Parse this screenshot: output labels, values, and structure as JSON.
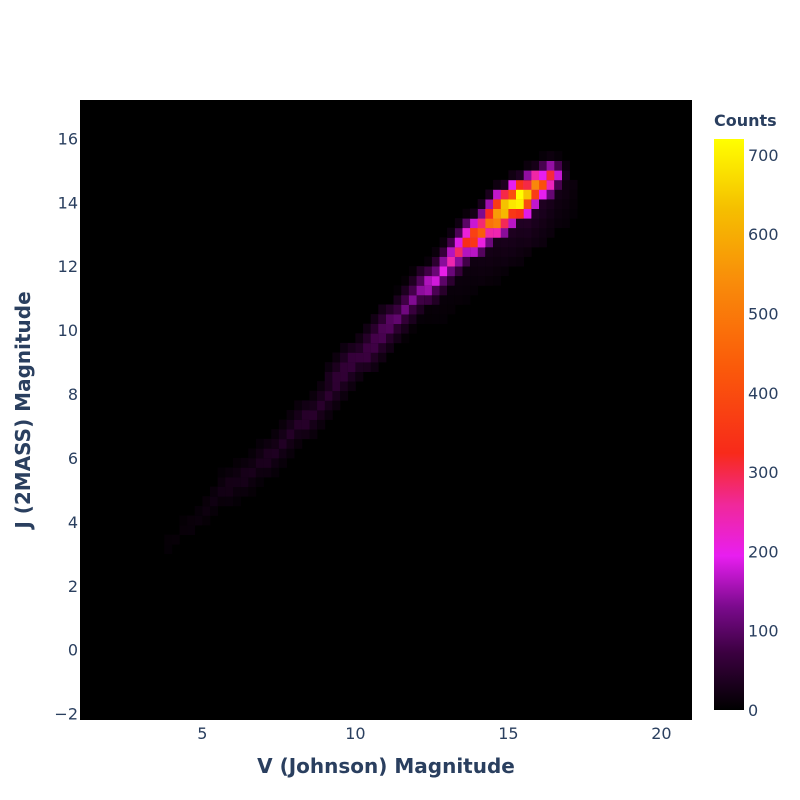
{
  "chart_data": {
    "type": "heatmap",
    "subtype": "2d-histogram",
    "xlabel": "V (Johnson) Magnitude",
    "ylabel": "J (2MASS) Magnitude",
    "xlim": [
      1,
      21
    ],
    "ylim": [
      -2.2,
      17.2
    ],
    "x_ticks": [
      5,
      10,
      15,
      20
    ],
    "x_tick_labels": [
      "5",
      "10",
      "15",
      "20"
    ],
    "y_ticks": [
      -2,
      0,
      2,
      4,
      6,
      8,
      10,
      12,
      14,
      16
    ],
    "y_tick_labels": [
      "−2",
      "0",
      "2",
      "4",
      "6",
      "8",
      "10",
      "12",
      "14",
      "16"
    ],
    "grid": false,
    "plot_background": "#000000",
    "colorbar": {
      "title": "Counts",
      "range": [
        0,
        720
      ],
      "ticks": [
        0,
        100,
        200,
        300,
        400,
        500,
        600,
        700
      ],
      "tick_labels": [
        "0",
        "100",
        "200",
        "300",
        "400",
        "500",
        "600",
        "700"
      ],
      "colorscale": [
        "#0d0887",
        "#000000",
        "#3b0040",
        "#7a0a8c",
        "#c41bd6",
        "#e81ef0",
        "#f0289a",
        "#f82a1a",
        "#fa5a0a",
        "#f98c0a",
        "#f5c000",
        "#ffff00"
      ]
    },
    "bin_width": {
      "x": 0.25,
      "y": 0.3
    },
    "ridge": [
      {
        "x": 3.4,
        "y": 2.8,
        "count": 5
      },
      {
        "x": 4.0,
        "y": 3.4,
        "count": 8
      },
      {
        "x": 4.8,
        "y": 4.0,
        "count": 12
      },
      {
        "x": 5.6,
        "y": 4.8,
        "count": 22
      },
      {
        "x": 6.4,
        "y": 5.4,
        "count": 28
      },
      {
        "x": 7.2,
        "y": 6.0,
        "count": 35
      },
      {
        "x": 8.0,
        "y": 6.8,
        "count": 45
      },
      {
        "x": 8.8,
        "y": 7.6,
        "count": 50
      },
      {
        "x": 9.6,
        "y": 8.6,
        "count": 60
      },
      {
        "x": 10.4,
        "y": 9.4,
        "count": 75
      },
      {
        "x": 11.2,
        "y": 10.2,
        "count": 100
      },
      {
        "x": 12.0,
        "y": 11.0,
        "count": 140
      },
      {
        "x": 12.8,
        "y": 11.8,
        "count": 200
      },
      {
        "x": 13.6,
        "y": 12.6,
        "count": 330
      },
      {
        "x": 14.2,
        "y": 13.1,
        "count": 460
      },
      {
        "x": 14.8,
        "y": 13.6,
        "count": 620
      },
      {
        "x": 15.2,
        "y": 14.0,
        "count": 720
      },
      {
        "x": 15.6,
        "y": 14.2,
        "count": 560
      },
      {
        "x": 16.0,
        "y": 14.5,
        "count": 380
      },
      {
        "x": 16.4,
        "y": 14.7,
        "count": 160
      }
    ]
  }
}
